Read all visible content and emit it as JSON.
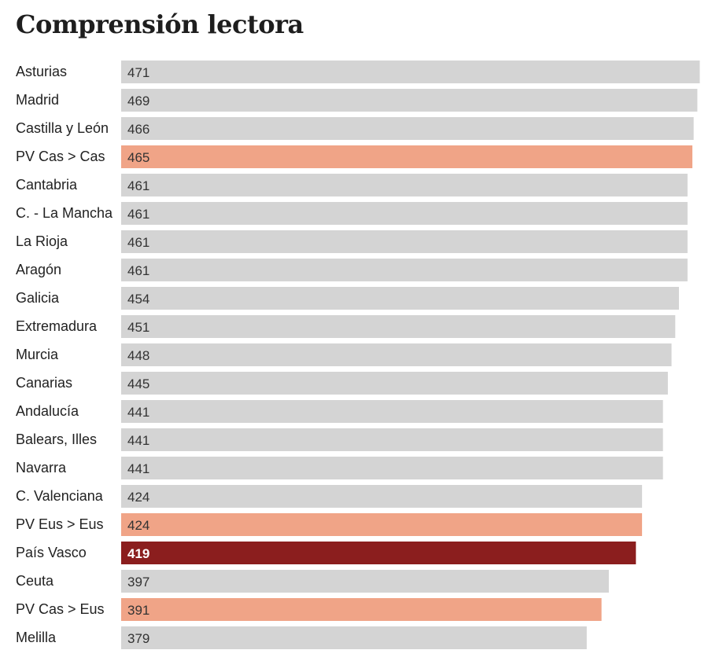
{
  "chart_data": {
    "type": "bar",
    "orientation": "horizontal",
    "title": "Comprensión lectora",
    "categories": [
      "Asturias",
      "Madrid",
      "Castilla y León",
      "PV Cas > Cas",
      "Cantabria",
      "C. - La Mancha",
      "La Rioja",
      "Aragón",
      "Galicia",
      "Extremadura",
      "Murcia",
      "Canarias",
      "Andalucía",
      "Balears, Illes",
      "Navarra",
      "C. Valenciana",
      "PV Eus > Eus",
      "País Vasco",
      "Ceuta",
      "PV Cas > Eus",
      "Melilla"
    ],
    "values": [
      471,
      469,
      466,
      465,
      461,
      461,
      461,
      461,
      454,
      451,
      448,
      445,
      441,
      441,
      441,
      424,
      424,
      419,
      397,
      391,
      379
    ],
    "highlight": [
      "normal",
      "normal",
      "normal",
      "light",
      "normal",
      "normal",
      "normal",
      "normal",
      "normal",
      "normal",
      "normal",
      "normal",
      "normal",
      "normal",
      "normal",
      "normal",
      "light",
      "dark",
      "normal",
      "light",
      "normal"
    ],
    "colors": {
      "normal": "#d4d4d4",
      "light": "#f0a487",
      "dark": "#8b1e1e"
    },
    "grid": false,
    "legend": "none"
  }
}
